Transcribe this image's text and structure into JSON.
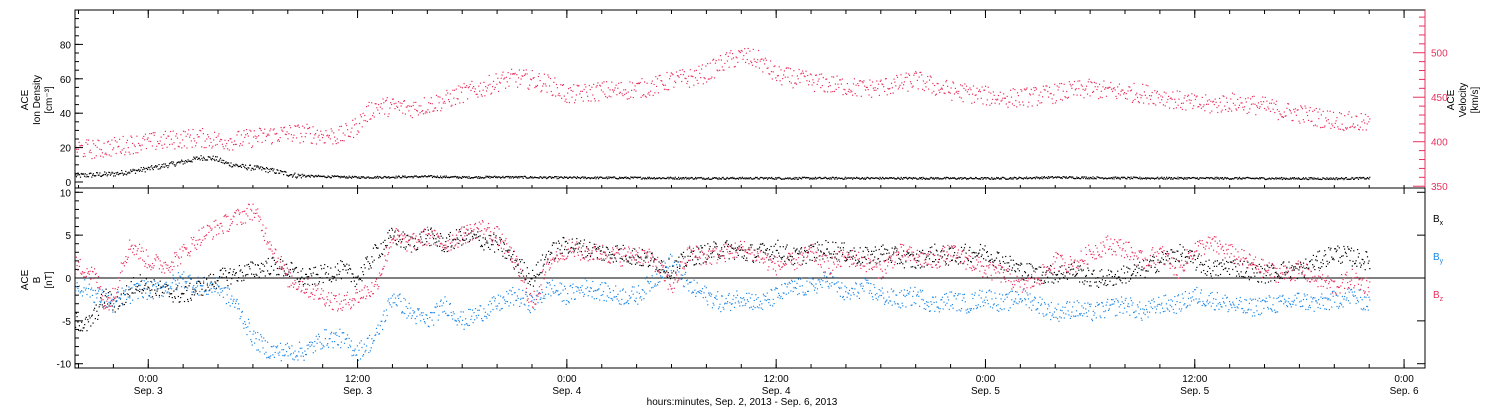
{
  "chart_data": [
    {
      "type": "scatter",
      "panel": "top",
      "xlabel": "hours:minutes, Sep.  2, 2013 - Sep.  6, 2013",
      "x_ticks": [
        {
          "time": "0:00",
          "date": "Sep. 3",
          "hours": 0
        },
        {
          "time": "12:00",
          "date": "Sep. 3",
          "hours": 12
        },
        {
          "time": "0:00",
          "date": "Sep. 4",
          "hours": 24
        },
        {
          "time": "12:00",
          "date": "Sep. 4",
          "hours": 36
        },
        {
          "time": "0:00",
          "date": "Sep. 5",
          "hours": 48
        },
        {
          "time": "12:00",
          "date": "Sep. 5",
          "hours": 60
        },
        {
          "time": "0:00",
          "date": "Sep. 6",
          "hours": 72
        }
      ],
      "xlim_hours": [
        -4.2,
        73.2
      ],
      "left_axis": {
        "label_lines": [
          "ACE",
          "Ion Density",
          "[cm⁻³]"
        ],
        "ylim": [
          0,
          100
        ],
        "ticks": [
          "0",
          "20",
          "40",
          "60",
          "80"
        ],
        "tick_values": [
          0,
          20,
          40,
          60,
          80
        ],
        "color": "#000000"
      },
      "right_axis": {
        "label_lines": [
          "ACE",
          "Velocity",
          "[km/s]"
        ],
        "ylim": [
          348,
          548
        ],
        "ticks": [
          "350",
          "400",
          "450",
          "500"
        ],
        "tick_values": [
          350,
          400,
          450,
          500
        ],
        "color": "#e8305e"
      },
      "series": [
        {
          "color": "#000000",
          "axis": "left",
          "x_hours": [
            -4.2,
            -3,
            -2,
            -1,
            0,
            1,
            2,
            3,
            3.8,
            4.5,
            5.5,
            6.5,
            7.5,
            8.5,
            10,
            12,
            14,
            16,
            18,
            20,
            22,
            24,
            28,
            32,
            36,
            40,
            44,
            48,
            50,
            52,
            56,
            60,
            64,
            68,
            70
          ],
          "values": [
            4,
            4.5,
            5,
            6.5,
            8,
            10,
            12,
            14.5,
            14,
            11,
            9,
            8,
            6,
            4,
            3.5,
            3,
            3.2,
            3.5,
            3,
            3.2,
            3,
            2.8,
            2.7,
            2.5,
            2.5,
            2.5,
            2.5,
            2.4,
            2.6,
            3,
            2.6,
            2.5,
            2.4,
            2.3,
            2.5
          ]
        },
        {
          "color": "#e8305e",
          "axis": "right",
          "x_hours": [
            -4.2,
            -3,
            -2,
            -1,
            0,
            1,
            2,
            3,
            4,
            5,
            6,
            7,
            8,
            9,
            10,
            11,
            11.5,
            12,
            12.5,
            13,
            14,
            15,
            16,
            17,
            18,
            19,
            20,
            21,
            22,
            23,
            24,
            25,
            26,
            27,
            28,
            29,
            30,
            31,
            32,
            33,
            34,
            35,
            36,
            37,
            38,
            39,
            40,
            41,
            42,
            43,
            44,
            45,
            46,
            47,
            48,
            49,
            50,
            51,
            52,
            53,
            54,
            55,
            56,
            57,
            58,
            59,
            60,
            61,
            62,
            63,
            64,
            65,
            66,
            67,
            68,
            69,
            70
          ],
          "values": [
            393,
            392,
            395,
            398,
            400,
            402,
            404,
            405,
            402,
            402,
            405,
            408,
            410,
            410,
            408,
            407,
            412,
            420,
            432,
            440,
            440,
            438,
            442,
            447,
            455,
            460,
            468,
            472,
            470,
            465,
            453,
            455,
            458,
            458,
            460,
            463,
            470,
            472,
            478,
            490,
            497,
            492,
            475,
            472,
            468,
            465,
            463,
            460,
            462,
            465,
            470,
            463,
            458,
            455,
            452,
            450,
            450,
            452,
            455,
            458,
            460,
            458,
            456,
            455,
            452,
            447,
            443,
            442,
            445,
            443,
            440,
            435,
            432,
            428,
            425,
            423,
            420
          ]
        }
      ]
    },
    {
      "type": "scatter",
      "panel": "bottom",
      "xlim_hours": [
        -4.2,
        73.2
      ],
      "left_axis": {
        "label_lines": [
          "ACE",
          "B",
          "[nT]"
        ],
        "ylim": [
          -10.5,
          10.5
        ],
        "ticks": [
          "-10",
          "-5",
          "0",
          "5",
          "10"
        ],
        "tick_values": [
          -10,
          -5,
          0,
          5,
          10
        ],
        "zero_line": true
      },
      "legend_position": "right",
      "series": [
        {
          "name": "B",
          "sub": "x",
          "color": "#000000",
          "x_hours": [
            -4.2,
            -3.5,
            -3,
            -2.5,
            -2,
            -1.5,
            -1,
            -0.5,
            0,
            1,
            2,
            3,
            4,
            5,
            6,
            7,
            8,
            9,
            10,
            11,
            12,
            13,
            14,
            15,
            16,
            17,
            18,
            19,
            20,
            21,
            22,
            23,
            24,
            25,
            26,
            27,
            28,
            29,
            30,
            31,
            32,
            33,
            34,
            35,
            36,
            37,
            38,
            39,
            40,
            41,
            42,
            43,
            44,
            45,
            46,
            47,
            48,
            49,
            50,
            51,
            52,
            53,
            54,
            55,
            56,
            57,
            58,
            59,
            60,
            61,
            62,
            63,
            64,
            65,
            66,
            67,
            68,
            69,
            70
          ],
          "values": [
            -5,
            -5.5,
            -4,
            -2,
            -3,
            -2.5,
            -1,
            -0.5,
            -1,
            -1.5,
            -2,
            -1,
            0,
            0.5,
            1,
            1.5,
            1,
            0,
            0.5,
            1,
            0,
            3,
            5,
            4,
            5,
            4,
            5,
            4.5,
            4,
            2,
            0,
            3,
            4,
            3.5,
            3,
            3,
            2.5,
            2,
            1,
            2.5,
            3,
            3.5,
            3,
            3,
            3.5,
            2.5,
            3,
            3.5,
            3,
            2.5,
            3,
            2.5,
            2,
            3,
            2.5,
            3,
            3,
            2,
            1,
            0.5,
            0.5,
            1,
            0,
            0,
            0.5,
            1,
            2,
            3,
            2,
            1,
            1.5,
            1,
            0.5,
            1,
            1,
            2,
            3,
            2.5,
            2
          ]
        },
        {
          "name": "B",
          "sub": "y",
          "color": "#1e88e5",
          "x_hours": [
            -4.2,
            -3.5,
            -3,
            -2.5,
            -2,
            -1.5,
            -1,
            -0.5,
            0,
            1,
            2,
            3,
            4,
            5,
            6,
            7,
            8,
            9,
            10,
            11,
            12,
            13,
            14,
            15,
            16,
            17,
            18,
            19,
            20,
            21,
            22,
            23,
            24,
            25,
            26,
            27,
            28,
            29,
            30,
            31,
            32,
            33,
            34,
            35,
            36,
            37,
            38,
            39,
            40,
            41,
            42,
            43,
            44,
            45,
            46,
            47,
            48,
            49,
            50,
            51,
            52,
            53,
            54,
            55,
            56,
            57,
            58,
            59,
            60,
            61,
            62,
            63,
            64,
            65,
            66,
            67,
            68,
            69,
            70
          ],
          "values": [
            -1,
            -1,
            -2,
            -2.5,
            -3,
            -2,
            -2,
            -1,
            -1.5,
            -1,
            0,
            -1,
            -1,
            -3,
            -7,
            -8.5,
            -8.5,
            -8.5,
            -7,
            -7,
            -8.5,
            -7,
            -2,
            -4,
            -5,
            -3,
            -5,
            -4,
            -3,
            -2,
            -3,
            -1,
            -2,
            -1,
            -1.5,
            -2,
            -2,
            0,
            2,
            -1,
            -2,
            -3,
            -2,
            -3,
            -2,
            -1,
            -1,
            0,
            -2,
            -1,
            -2,
            -2.5,
            -2,
            -3,
            -2.5,
            -3,
            -2,
            -3,
            -2,
            -3,
            -4,
            -3.5,
            -4,
            -3.5,
            -3,
            -4,
            -3,
            -3,
            -2,
            -2.5,
            -3,
            -3.5,
            -3,
            -3,
            -2.5,
            -3,
            -2.5,
            -2,
            -3
          ]
        },
        {
          "name": "B",
          "sub": "z",
          "color": "#e8305e",
          "x_hours": [
            -4.2,
            -3.5,
            -3,
            -2.5,
            -2,
            -1.5,
            -1,
            -0.5,
            0,
            1,
            2,
            3,
            4,
            5,
            6,
            7,
            8,
            9,
            10,
            11,
            12,
            13,
            14,
            15,
            16,
            17,
            18,
            19,
            20,
            21,
            22,
            23,
            24,
            25,
            26,
            27,
            28,
            29,
            30,
            31,
            32,
            33,
            34,
            35,
            36,
            37,
            38,
            39,
            40,
            41,
            42,
            43,
            44,
            45,
            46,
            47,
            48,
            49,
            50,
            51,
            52,
            53,
            54,
            55,
            56,
            57,
            58,
            59,
            60,
            61,
            62,
            63,
            64,
            65,
            66,
            67,
            68,
            69,
            70
          ],
          "values": [
            1.5,
            1,
            0,
            -3,
            -2,
            2,
            4,
            3,
            2,
            1.5,
            3,
            5,
            6,
            7,
            8,
            4,
            0,
            -1,
            -2,
            -3,
            -2,
            -1,
            5,
            4,
            5,
            4,
            5,
            6,
            5,
            2,
            -3,
            2,
            3.5,
            3,
            3,
            2.5,
            3,
            2,
            -1,
            3,
            2.5,
            3,
            3.5,
            2.5,
            1.5,
            2,
            3,
            1.5,
            2.5,
            2,
            1,
            3,
            2.5,
            2,
            3,
            2,
            1,
            0.5,
            -1,
            0,
            2,
            1.5,
            3,
            4,
            3.5,
            2,
            3,
            1,
            3.5,
            4,
            3,
            2,
            1,
            0.5,
            1,
            0,
            -1,
            0,
            -1
          ]
        }
      ]
    }
  ]
}
